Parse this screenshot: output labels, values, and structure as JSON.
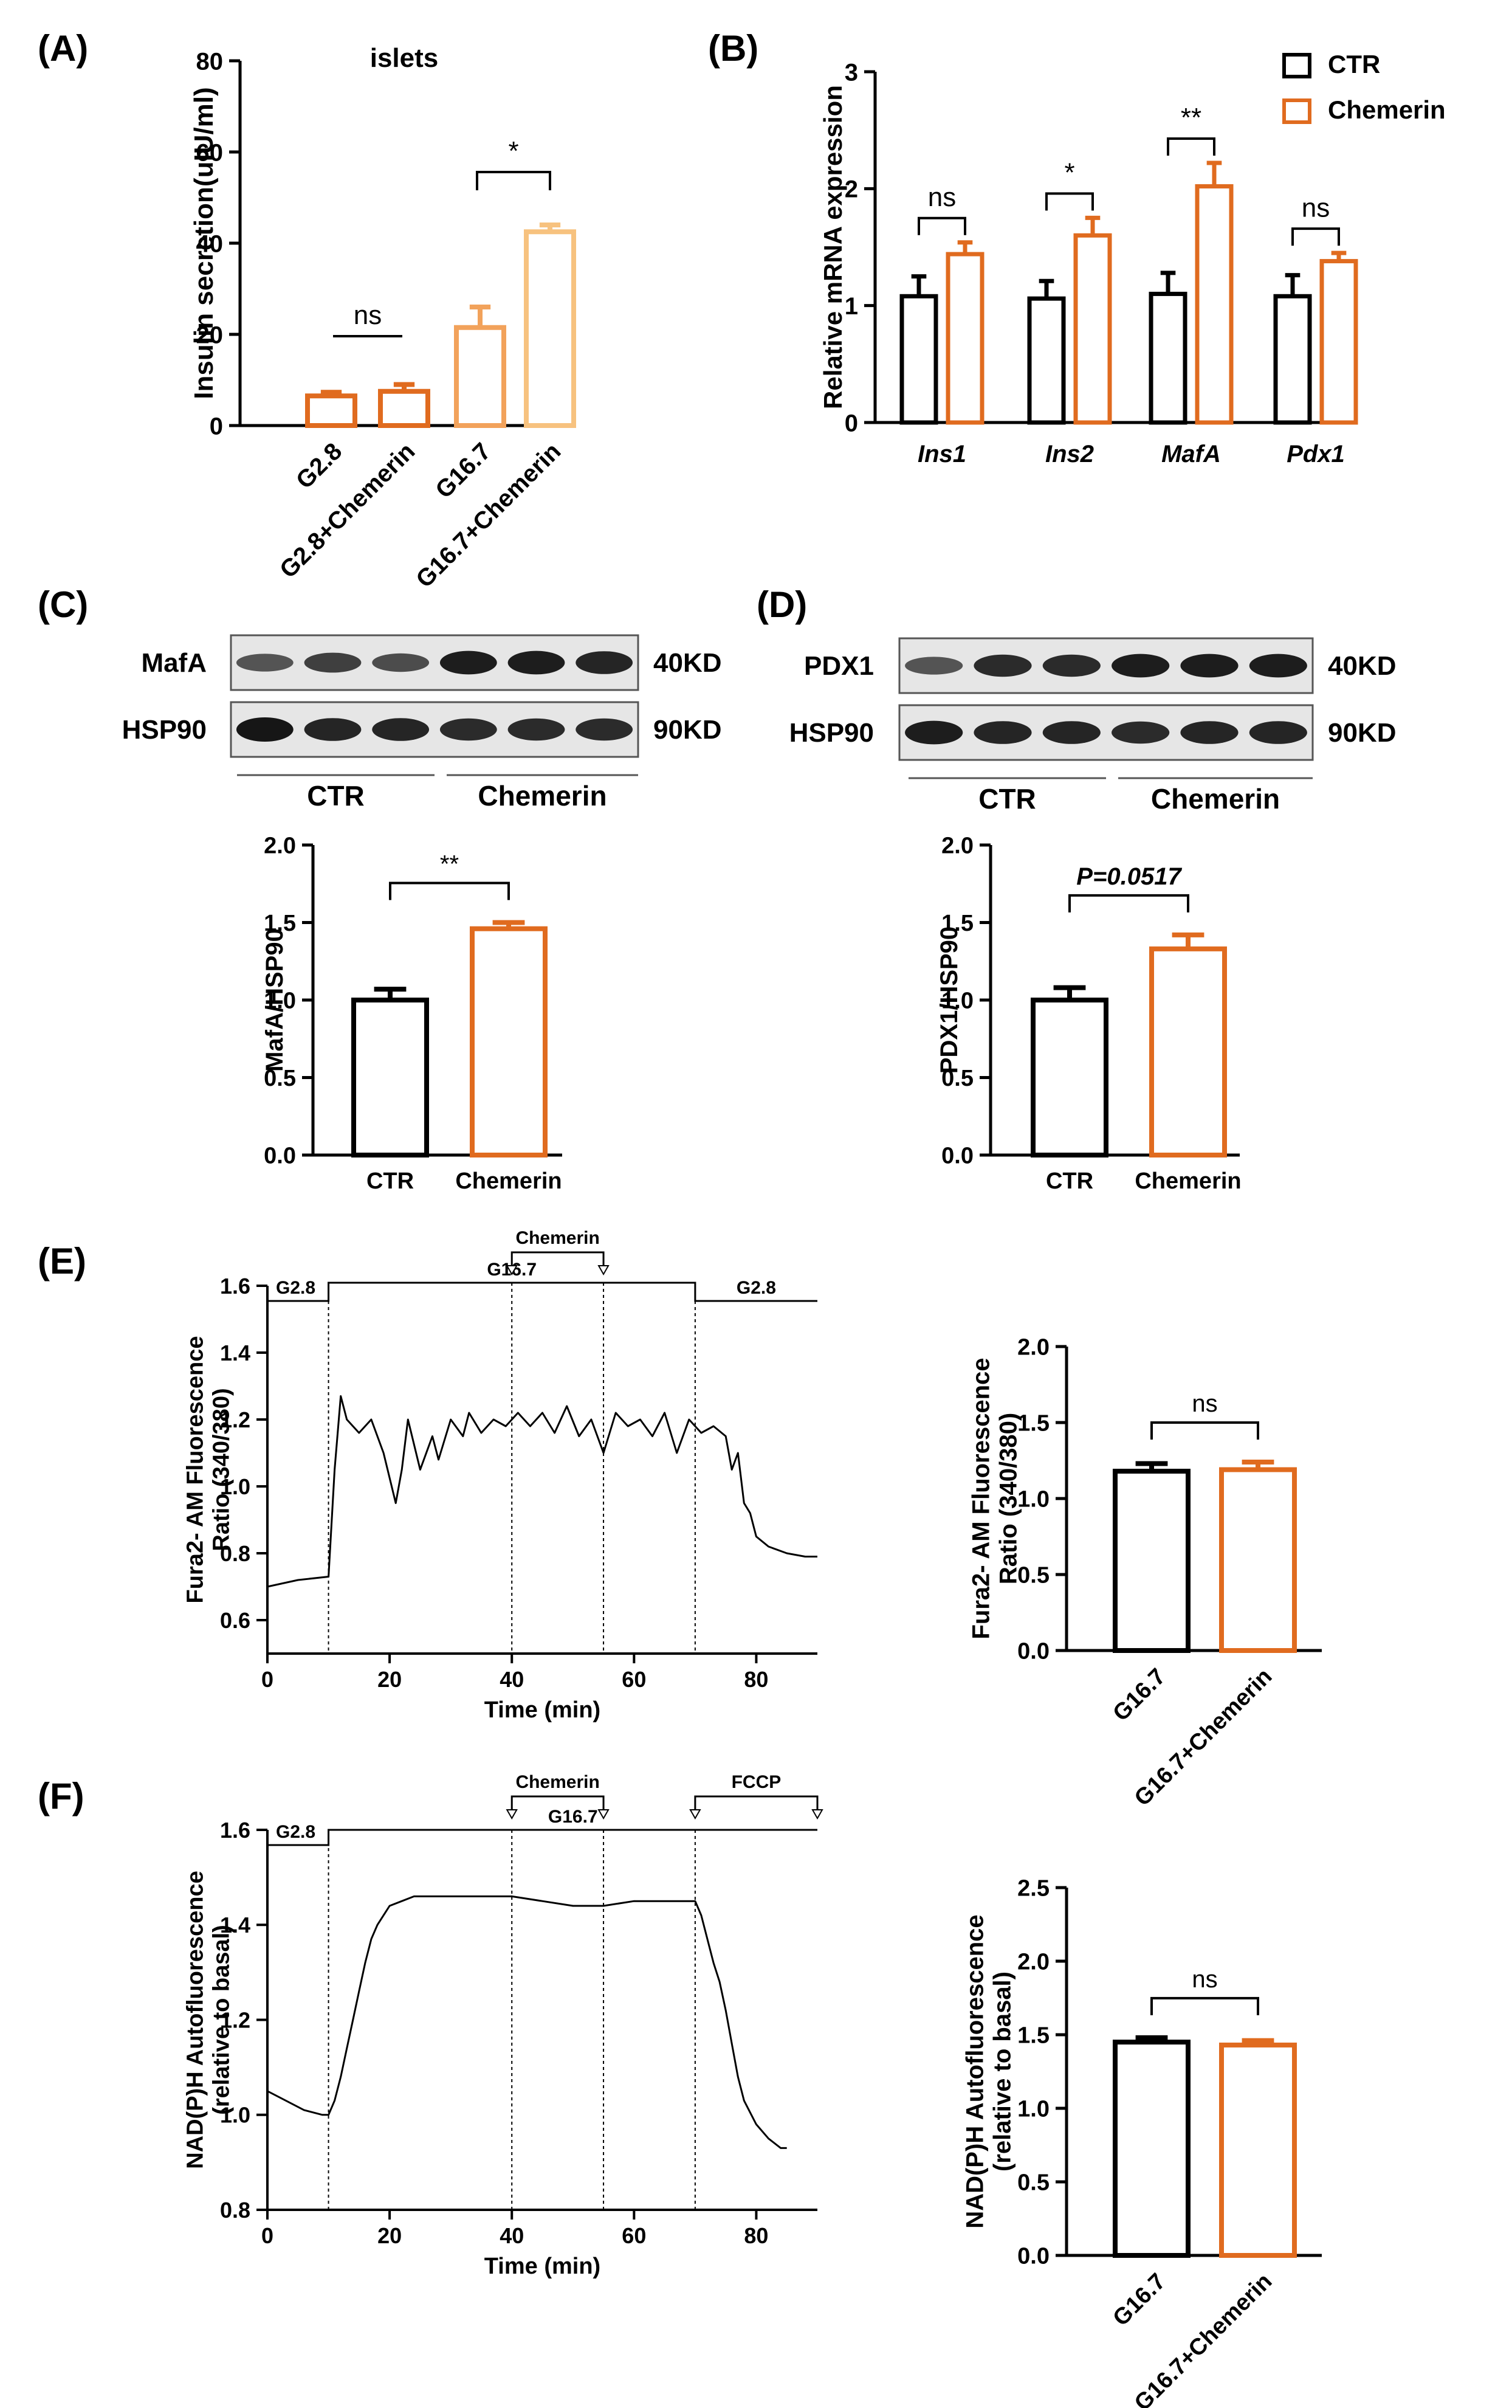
{
  "colors": {
    "ctr": "#000000",
    "chemerin": "#E06B1F",
    "g28_bar": "#E06B1F",
    "g167_bar": "#F2A25B",
    "g167_chemerin_bar": "#F7C27F",
    "blot_band": "#161616",
    "blot_bg": "#e6e6e6"
  },
  "chart_data": [
    {
      "panel": "(A)",
      "type": "bar",
      "title": "islets",
      "ylabel": "Insulin secretion(uIU/ml)",
      "ylim": [
        0,
        80
      ],
      "yticks": [
        0,
        20,
        40,
        60,
        80
      ],
      "categories": [
        "G2.8",
        "G2.8+Chemerin",
        "G16.7",
        "G16.7+Chemerin"
      ],
      "values": [
        6.5,
        7.5,
        21.5,
        42.5
      ],
      "errors": [
        0.8,
        1.5,
        4.5,
        1.5
      ],
      "comparisons": [
        {
          "from": 0,
          "to": 1,
          "label": "ns"
        },
        {
          "from": 2,
          "to": 3,
          "label": "*"
        }
      ]
    },
    {
      "panel": "(B)",
      "type": "bar",
      "ylabel": "Relative mRNA expression",
      "ylim": [
        0,
        3
      ],
      "yticks": [
        0,
        1,
        2,
        3
      ],
      "categories": [
        "Ins1",
        "Ins2",
        "MafA",
        "Pdx1"
      ],
      "series": [
        {
          "name": "CTR",
          "values": [
            1.08,
            1.06,
            1.1,
            1.08
          ],
          "errors": [
            0.17,
            0.15,
            0.18,
            0.18
          ]
        },
        {
          "name": "Chemerin",
          "values": [
            1.44,
            1.6,
            2.02,
            1.38
          ],
          "errors": [
            0.1,
            0.15,
            0.2,
            0.07
          ]
        }
      ],
      "legend": "top-right",
      "comparisons": [
        "ns",
        "*",
        "**",
        "ns"
      ]
    },
    {
      "panel": "(C)",
      "type": "bar",
      "ylabel": "MafA/HSP90",
      "ylim": [
        0,
        2
      ],
      "yticks": [
        "0.0",
        "0.5",
        "1.0",
        "1.5",
        "2.0"
      ],
      "categories": [
        "CTR",
        "Chemerin"
      ],
      "values": [
        1.0,
        1.46
      ],
      "errors": [
        0.07,
        0.04
      ],
      "comparison": "**"
    },
    {
      "panel": "(D)",
      "type": "bar",
      "ylabel": "PDX1/HSP90",
      "ylim": [
        0,
        2
      ],
      "yticks": [
        "0.0",
        "0.5",
        "1.0",
        "1.5",
        "2.0"
      ],
      "categories": [
        "CTR",
        "Chemerin"
      ],
      "values": [
        1.0,
        1.33
      ],
      "errors": [
        0.08,
        0.09
      ],
      "comparison": "P=0.0517"
    },
    {
      "panel": "(E)",
      "type": "line",
      "xlabel": "Time (min)",
      "ylabel": "Fura2- AM Fluorescence\nRatio (340/380)",
      "xlim": [
        0,
        90
      ],
      "ylim": [
        0.5,
        1.6
      ],
      "xticks": [
        0,
        20,
        40,
        60,
        80
      ],
      "yticks": [
        "0.6",
        "0.8",
        "1.0",
        "1.2",
        "1.4",
        "1.6"
      ],
      "x": [
        0,
        5,
        10,
        11,
        12,
        13,
        15,
        17,
        19,
        21,
        22,
        23,
        25,
        27,
        28,
        30,
        32,
        33,
        35,
        37,
        39,
        41,
        43,
        45,
        47,
        49,
        51,
        53,
        55,
        57,
        59,
        61,
        63,
        65,
        67,
        69,
        71,
        73,
        75,
        76,
        77,
        78,
        79,
        80,
        82,
        85,
        88,
        90
      ],
      "y": [
        0.7,
        0.72,
        0.73,
        1.05,
        1.27,
        1.2,
        1.16,
        1.2,
        1.1,
        0.95,
        1.05,
        1.2,
        1.05,
        1.15,
        1.08,
        1.2,
        1.15,
        1.22,
        1.16,
        1.2,
        1.18,
        1.22,
        1.18,
        1.22,
        1.16,
        1.24,
        1.15,
        1.2,
        1.1,
        1.22,
        1.18,
        1.2,
        1.15,
        1.22,
        1.1,
        1.2,
        1.16,
        1.18,
        1.15,
        1.05,
        1.1,
        0.95,
        0.92,
        0.85,
        0.82,
        0.8,
        0.79,
        0.79
      ],
      "protocol": [
        {
          "label": "G2.8",
          "start": 0,
          "end": 10
        },
        {
          "label": "G16.7",
          "start": 10,
          "end": 70
        },
        {
          "label": "G2.8",
          "start": 70,
          "end": 90
        }
      ],
      "additions": [
        {
          "label": "Chemerin",
          "start": 40,
          "end": 55
        }
      ]
    },
    {
      "panel": "(E)",
      "type": "bar",
      "ylabel": "Fura2- AM Fluorescence\nRatio (340/380)",
      "ylim": [
        0,
        2
      ],
      "yticks": [
        "0.0",
        "0.5",
        "1.0",
        "1.5",
        "2.0"
      ],
      "categories": [
        "G16.7",
        "G16.7+Chemerin"
      ],
      "values": [
        1.18,
        1.19
      ],
      "errors": [
        0.05,
        0.05
      ],
      "comparison": "ns"
    },
    {
      "panel": "(F)",
      "type": "line",
      "xlabel": "Time (min)",
      "ylabel": "NAD(P)H Autofluorescence\n(relative to basal)",
      "xlim": [
        0,
        90
      ],
      "ylim": [
        0.8,
        1.6
      ],
      "xticks": [
        0,
        20,
        40,
        60,
        80
      ],
      "yticks": [
        "0.8",
        "1.0",
        "1.2",
        "1.4",
        "1.6"
      ],
      "x": [
        0,
        3,
        6,
        9,
        10,
        11,
        12,
        13,
        14,
        15,
        16,
        17,
        18,
        19,
        20,
        22,
        24,
        26,
        30,
        35,
        40,
        45,
        50,
        55,
        60,
        65,
        70,
        71,
        72,
        73,
        74,
        75,
        76,
        77,
        78,
        80,
        82,
        84,
        85
      ],
      "y": [
        1.05,
        1.03,
        1.01,
        1.0,
        1.0,
        1.03,
        1.08,
        1.14,
        1.2,
        1.26,
        1.32,
        1.37,
        1.4,
        1.42,
        1.44,
        1.45,
        1.46,
        1.46,
        1.46,
        1.46,
        1.46,
        1.45,
        1.44,
        1.44,
        1.45,
        1.45,
        1.45,
        1.42,
        1.37,
        1.32,
        1.28,
        1.22,
        1.15,
        1.08,
        1.03,
        0.98,
        0.95,
        0.93,
        0.93
      ],
      "protocol": [
        {
          "label": "G2.8",
          "start": 0,
          "end": 10
        },
        {
          "label": "G16.7",
          "start": 10,
          "end": 90
        }
      ],
      "additions": [
        {
          "label": "Chemerin",
          "start": 40,
          "end": 55
        },
        {
          "label": "FCCP",
          "start": 70,
          "end": 90
        }
      ]
    },
    {
      "panel": "(F)",
      "type": "bar",
      "ylabel": "NAD(P)H Autofluorescence\n(relative to basal)",
      "ylim": [
        0,
        2.5
      ],
      "yticks": [
        "0.0",
        "0.5",
        "1.0",
        "1.5",
        "2.0",
        "2.5"
      ],
      "categories": [
        "G16.7",
        "G16.7+Chemerin"
      ],
      "values": [
        1.45,
        1.43
      ],
      "errors": [
        0.03,
        0.03
      ],
      "comparison": "ns"
    }
  ],
  "blots": {
    "C": {
      "target": "MafA",
      "target_kd": "40KD",
      "loading": "HSP90",
      "loading_kd": "90KD",
      "groups": [
        "CTR",
        "Chemerin"
      ],
      "target_intensity": [
        0.55,
        0.7,
        0.6,
        0.95,
        0.95,
        0.9
      ],
      "loading_intensity": [
        1.0,
        0.9,
        0.9,
        0.85,
        0.85,
        0.85
      ]
    },
    "D": {
      "target": "PDX1",
      "target_kd": "40KD",
      "loading": "HSP90",
      "loading_kd": "90KD",
      "groups": [
        "CTR",
        "Chemerin"
      ],
      "target_intensity": [
        0.55,
        0.85,
        0.85,
        0.95,
        0.95,
        0.95
      ],
      "loading_intensity": [
        0.95,
        0.9,
        0.9,
        0.85,
        0.9,
        0.9
      ]
    }
  }
}
